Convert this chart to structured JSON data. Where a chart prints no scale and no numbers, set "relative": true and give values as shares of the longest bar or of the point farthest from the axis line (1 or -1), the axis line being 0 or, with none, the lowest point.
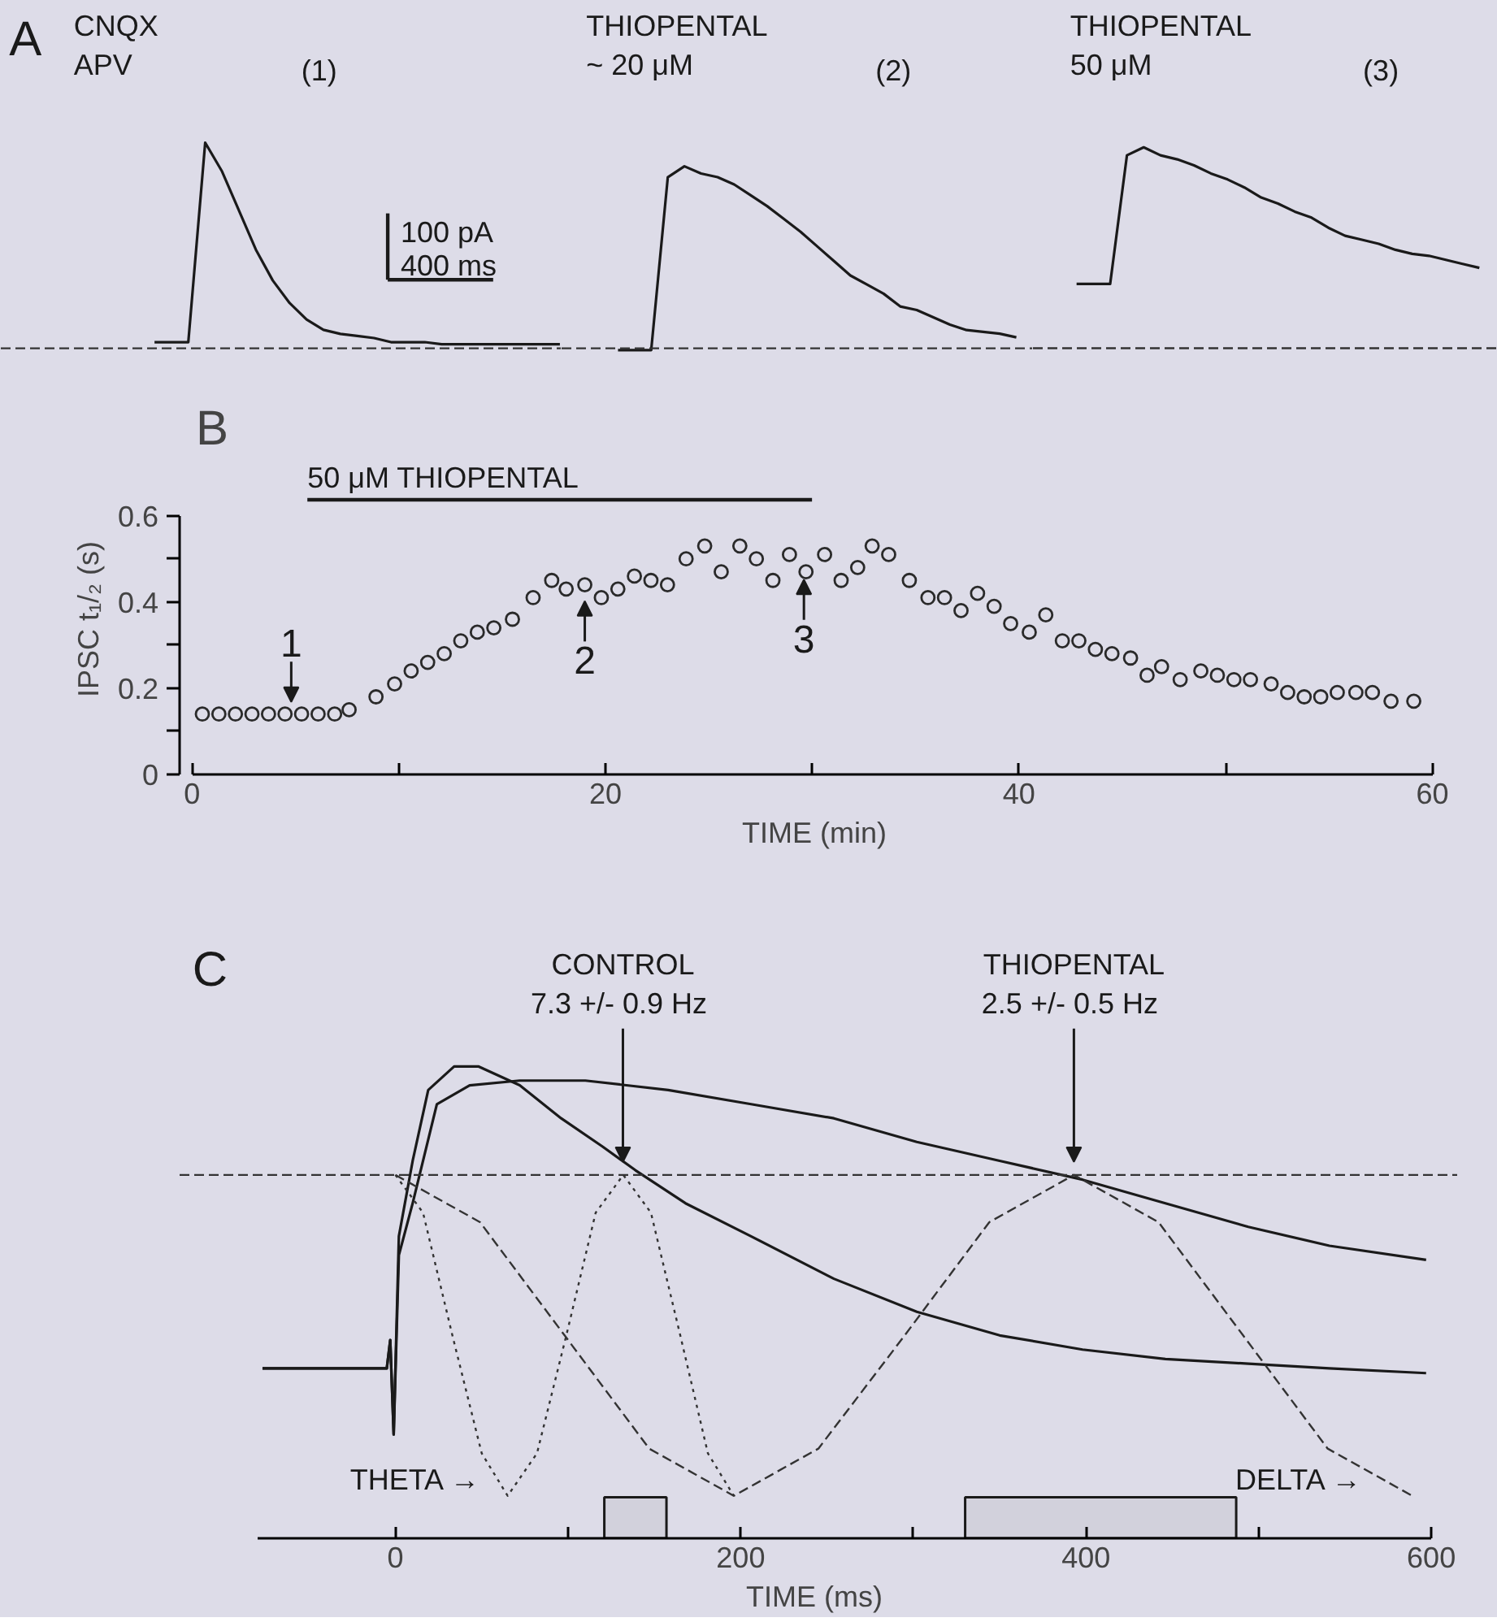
{
  "chart_data": [
    {
      "title": "A",
      "type": "line",
      "relative": true,
      "tick_labels": false,
      "color": "#1a1a1a",
      "categories": [
        null,
        null,
        null,
        null,
        null,
        null,
        null,
        null,
        null,
        null,
        null,
        null,
        null,
        null,
        null,
        null,
        null,
        null,
        null,
        null,
        null,
        null,
        null,
        null,
        null
      ],
      "values": [
        0.03,
        0.03,
        0.03,
        1,
        0.86,
        0.67,
        0.48,
        0.33,
        0.22,
        0.14,
        0.09,
        0.07,
        0.06,
        0.05,
        0.03,
        0.03,
        0.03,
        0.02,
        0.02,
        0.02,
        0.02,
        0.02,
        0.02,
        0.02,
        0.02
      ],
      "ref_lines": [
        {
          "axis": "y",
          "value": 0,
          "line_style": "dashed"
        }
      ],
      "annotations": [
        "CNQX\nAPV",
        "(1)",
        "100 pA",
        "400 ms"
      ]
    },
    {
      "type": "line",
      "relative": true,
      "tick_labels": false,
      "color": "#1a1a1a",
      "categories": [
        null,
        null,
        null,
        null,
        null,
        null,
        null,
        null,
        null,
        null,
        null,
        null,
        null,
        null,
        null,
        null,
        null,
        null,
        null,
        null,
        null,
        null,
        null,
        null,
        null
      ],
      "values": [
        -0.01,
        -0.01,
        -0.01,
        0.94,
        1,
        0.96,
        0.94,
        0.9,
        0.84,
        0.78,
        0.71,
        0.64,
        0.56,
        0.48,
        0.4,
        0.35,
        0.3,
        0.23,
        0.21,
        0.17,
        0.13,
        0.1,
        0.09,
        0.08,
        0.06
      ],
      "ref_lines": [
        {
          "axis": "y",
          "value": 0,
          "line_style": "dashed"
        }
      ],
      "annotations": [
        "THIOPENTAL\n~ 20 μM",
        "(2)"
      ]
    },
    {
      "type": "line",
      "relative": true,
      "tick_labels": false,
      "color": "#1a1a1a",
      "categories": [
        null,
        null,
        null,
        null,
        null,
        null,
        null,
        null,
        null,
        null,
        null,
        null,
        null,
        null,
        null,
        null,
        null,
        null,
        null,
        null,
        null,
        null,
        null,
        null,
        null
      ],
      "values": [
        0.32,
        0.32,
        0.32,
        0.96,
        1,
        0.96,
        0.94,
        0.91,
        0.87,
        0.84,
        0.8,
        0.75,
        0.72,
        0.68,
        0.65,
        0.6,
        0.56,
        0.54,
        0.52,
        0.49,
        0.47,
        0.46,
        0.44,
        0.42,
        0.4
      ],
      "ref_lines": [
        {
          "axis": "y",
          "value": 0,
          "line_style": "dashed"
        }
      ],
      "annotations": [
        "THIOPENTAL\n50 μM",
        "(3)"
      ]
    },
    {
      "title": "B",
      "type": "scatter",
      "marker": "circle",
      "color": "#2a2a2a",
      "x": [
        0.5,
        1.3,
        2.1,
        2.9,
        3.7,
        4.5,
        5.3,
        6.1,
        6.9,
        7.6,
        8.9,
        9.8,
        10.6,
        11.4,
        12.2,
        13.0,
        13.8,
        14.6,
        15.5,
        16.5,
        17.4,
        18.1,
        19.0,
        19.8,
        20.6,
        21.4,
        22.2,
        23.0,
        23.9,
        24.8,
        25.6,
        26.5,
        27.3,
        28.1,
        28.9,
        29.7,
        30.6,
        31.4,
        32.2,
        32.9,
        33.7,
        34.7,
        35.6,
        36.4,
        37.2,
        38.0,
        38.8,
        39.6,
        40.5,
        41.3,
        42.1,
        42.9,
        43.7,
        44.5,
        45.4,
        46.2,
        46.9,
        47.8,
        48.8,
        49.6,
        50.4,
        51.2,
        52.2,
        53.0,
        53.8,
        54.6,
        55.4,
        56.3,
        57.1,
        58.0,
        59.1
      ],
      "values": [
        0.14,
        0.14,
        0.14,
        0.14,
        0.14,
        0.14,
        0.14,
        0.14,
        0.14,
        0.15,
        0.18,
        0.21,
        0.24,
        0.26,
        0.28,
        0.31,
        0.33,
        0.34,
        0.36,
        0.41,
        0.45,
        0.43,
        0.44,
        0.41,
        0.43,
        0.46,
        0.45,
        0.44,
        0.5,
        0.53,
        0.47,
        0.53,
        0.5,
        0.45,
        0.51,
        0.47,
        0.51,
        0.45,
        0.48,
        0.53,
        0.51,
        0.45,
        0.41,
        0.41,
        0.38,
        0.42,
        0.39,
        0.35,
        0.33,
        0.37,
        0.31,
        0.31,
        0.29,
        0.28,
        0.27,
        0.23,
        0.25,
        0.22,
        0.24,
        0.23,
        0.22,
        0.22,
        0.21,
        0.19,
        0.18,
        0.18,
        0.19,
        0.19,
        0.19,
        0.17,
        0.17
      ],
      "xlabel": "TIME  (min)",
      "ylabel": "IPSC t₁/₂ (s)",
      "xlim": [
        0,
        60
      ],
      "xticks": [
        0,
        {
          "value": 10,
          "label": null
        },
        20,
        {
          "value": 30,
          "label": null
        },
        40,
        {
          "value": 50,
          "label": null
        },
        60
      ],
      "ylim": [
        0,
        0.6
      ],
      "yticks": [
        0,
        {
          "value": 0.1,
          "label": null
        },
        0.2,
        {
          "value": 0.3,
          "label": null
        },
        0.4,
        {
          "value": 0.5,
          "label": null
        },
        0.6
      ],
      "annotations": [
        {
          "text": "1",
          "x": 4.8,
          "y": 0.15
        },
        {
          "text": "2",
          "x": 19.0,
          "y": 0.42
        },
        {
          "text": "3",
          "x": 29.6,
          "y": 0.47
        },
        "50 μM THIOPENTAL"
      ]
    },
    {
      "title": "C",
      "type": "line",
      "relative": true,
      "tick_labels": "x",
      "xlabel": "TIME  (ms)",
      "xlim": [
        -80,
        600
      ],
      "xticks": [
        0,
        {
          "value": 100,
          "label": null
        },
        200,
        {
          "value": 300,
          "label": null
        },
        400,
        {
          "value": 500,
          "label": null
        },
        600
      ],
      "series": [
        {
          "color": "#1a1a1a",
          "x": [
            -77,
            -40,
            -5,
            -3,
            -1,
            2,
            10,
            19,
            34,
            48,
            72,
            96,
            120,
            139,
            168,
            206,
            254,
            302,
            350,
            398,
            446,
            494,
            541,
            597
          ],
          "values": [
            0.36,
            0.36,
            0.36,
            0.42,
            0.22,
            0.64,
            0.8,
            0.95,
            1.0,
            1.0,
            0.96,
            0.89,
            0.83,
            0.78,
            0.71,
            0.64,
            0.55,
            0.48,
            0.43,
            0.4,
            0.38,
            0.37,
            0.36,
            0.35
          ]
        },
        {
          "color": "#1a1a1a",
          "x": [
            -77,
            -40,
            -5,
            -3,
            -1,
            2,
            10,
            24,
            43,
            72,
            110,
            158,
            206,
            254,
            302,
            350,
            398,
            446,
            494,
            541,
            597
          ],
          "values": [
            0.36,
            0.36,
            0.36,
            0.42,
            0.22,
            0.6,
            0.71,
            0.92,
            0.96,
            0.97,
            0.97,
            0.95,
            0.92,
            0.89,
            0.84,
            0.8,
            0.76,
            0.71,
            0.66,
            0.62,
            0.59
          ]
        },
        {
          "color": "#333333",
          "line_style": "dotted",
          "x": [
            0,
            16,
            33,
            50,
            65,
            82,
            99,
            116,
            132,
            148,
            165,
            181,
            196
          ],
          "values": [
            0.77,
            0.69,
            0.43,
            0.18,
            0.09,
            0.18,
            0.43,
            0.69,
            0.77,
            0.69,
            0.43,
            0.18,
            0.09
          ]
        },
        {
          "color": "#333333",
          "line_style": "dashed",
          "x": [
            0,
            49,
            98,
            147,
            196,
            245,
            295,
            344,
            393,
            442,
            491,
            540,
            589
          ],
          "values": [
            0.77,
            0.67,
            0.43,
            0.19,
            0.09,
            0.19,
            0.43,
            0.67,
            0.77,
            0.67,
            0.43,
            0.19,
            0.09
          ]
        }
      ],
      "ref_lines": [
        {
          "axis": "y",
          "value": 0.77,
          "line_style": "dashed"
        }
      ],
      "bands": [
        {
          "axis": "x",
          "from": 121,
          "to": 157,
          "color": "#1a1a1a"
        },
        {
          "axis": "x",
          "from": 330,
          "to": 487,
          "color": "#1a1a1a"
        }
      ],
      "annotations": [
        "CONTROL\n7.3 +/- 0.9  Hz",
        "THIOPENTAL\n2.5 +/- 0.5  Hz",
        "THETA →",
        "DELTA →"
      ]
    }
  ]
}
